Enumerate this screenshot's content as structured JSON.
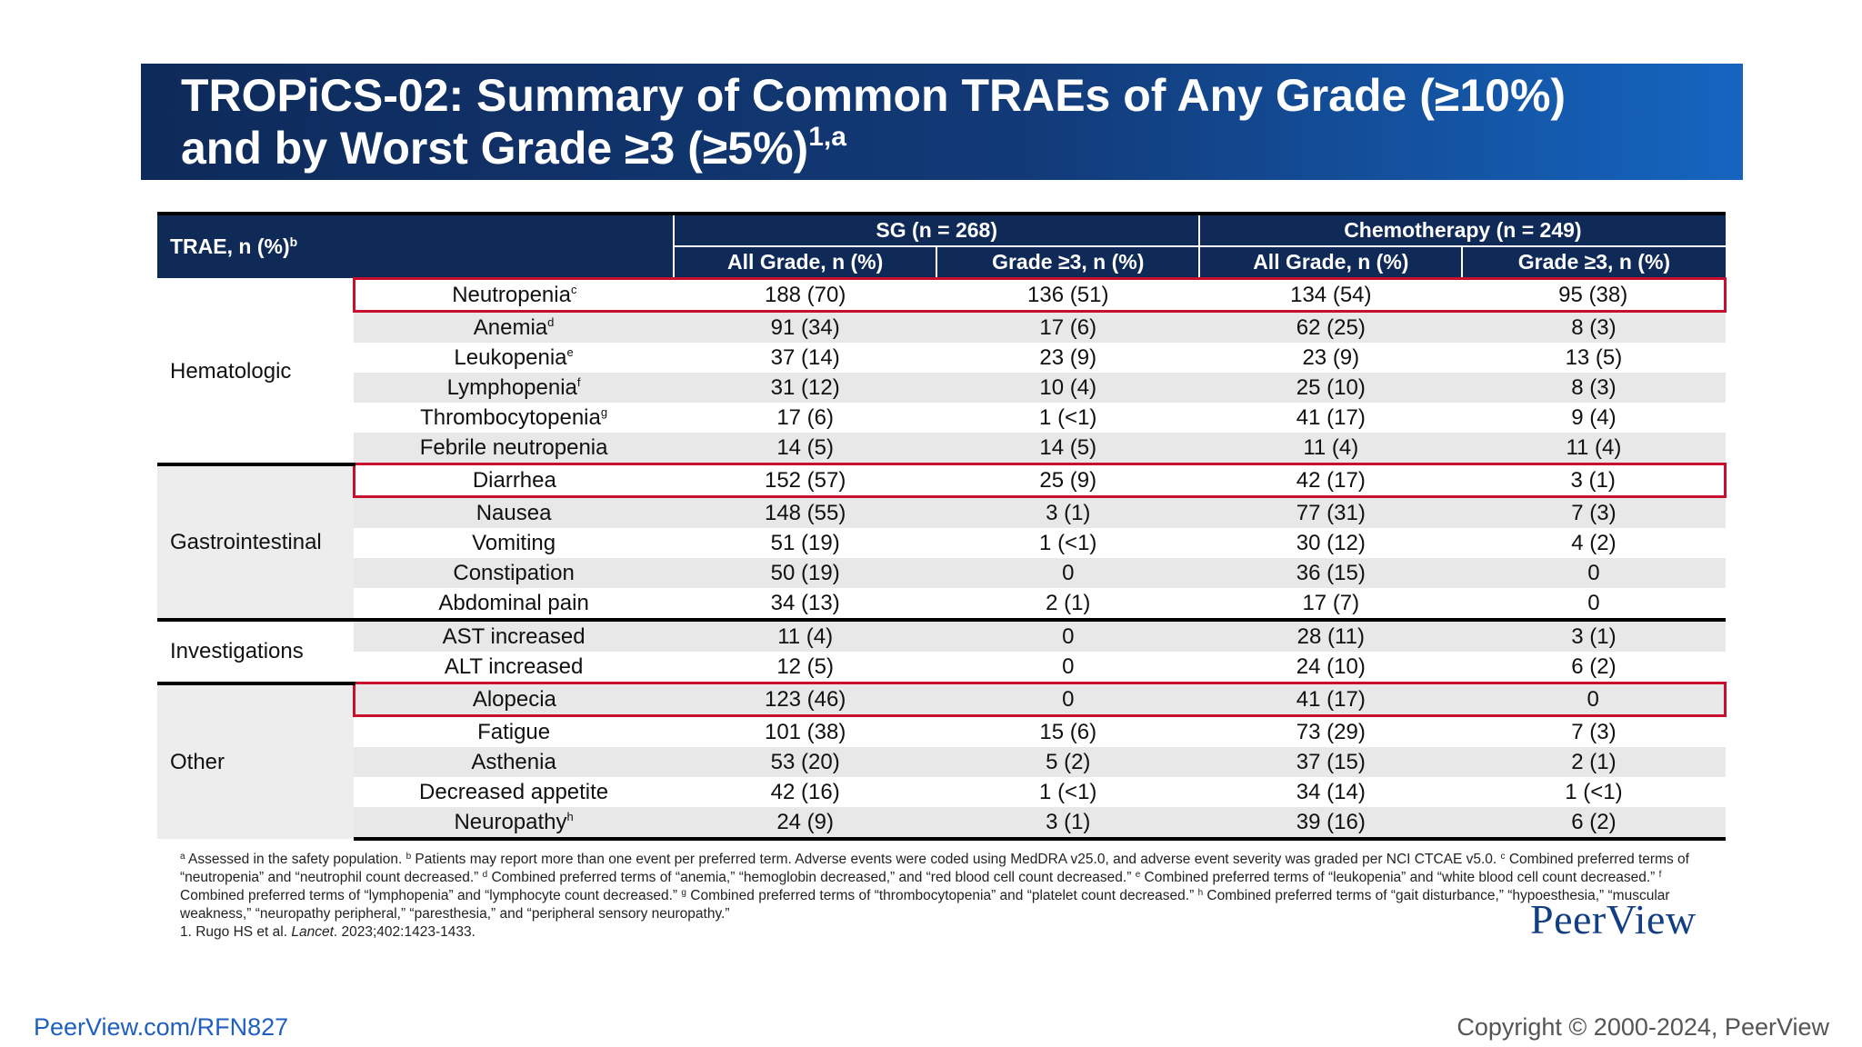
{
  "title": {
    "line1": "TROPiCS-02: Summary of Common TRAEs of Any Grade (≥10%)",
    "line2": "and by Worst Grade ≥3 (≥5%)",
    "line2_sup": "1,a"
  },
  "table": {
    "corner_label": "TRAE, n (%)",
    "corner_sup": "b",
    "group_headers": [
      "SG (n = 268)",
      "Chemotherapy (n = 249)"
    ],
    "sub_headers": [
      "All Grade, n (%)",
      "Grade ≥3, n (%)",
      "All Grade, n (%)",
      "Grade ≥3, n (%)"
    ],
    "categories": {
      "hematologic": "Hematologic",
      "gastrointestinal": "Gastrointestinal",
      "investigations": "Investigations",
      "other": "Other"
    },
    "rows": [
      {
        "term": "Neutropenia",
        "sup": "c",
        "values": [
          "188 (70)",
          "136 (51)",
          "134 (54)",
          "95 (38)"
        ]
      },
      {
        "term": "Anemia",
        "sup": "d",
        "values": [
          "91 (34)",
          "17 (6)",
          "62 (25)",
          "8 (3)"
        ]
      },
      {
        "term": "Leukopenia",
        "sup": "e",
        "values": [
          "37 (14)",
          "23 (9)",
          "23 (9)",
          "13 (5)"
        ]
      },
      {
        "term": "Lymphopenia",
        "sup": "f",
        "values": [
          "31 (12)",
          "10 (4)",
          "25 (10)",
          "8 (3)"
        ]
      },
      {
        "term": "Thrombocytopenia",
        "sup": "g",
        "values": [
          "17 (6)",
          "1 (<1)",
          "41 (17)",
          "9 (4)"
        ]
      },
      {
        "term": "Febrile neutropenia",
        "sup": "",
        "values": [
          "14 (5)",
          "14 (5)",
          "11 (4)",
          "11 (4)"
        ]
      },
      {
        "term": "Diarrhea",
        "sup": "",
        "values": [
          "152 (57)",
          "25 (9)",
          "42 (17)",
          "3 (1)"
        ]
      },
      {
        "term": "Nausea",
        "sup": "",
        "values": [
          "148 (55)",
          "3 (1)",
          "77 (31)",
          "7 (3)"
        ]
      },
      {
        "term": "Vomiting",
        "sup": "",
        "values": [
          "51 (19)",
          "1 (<1)",
          "30 (12)",
          "4 (2)"
        ]
      },
      {
        "term": "Constipation",
        "sup": "",
        "values": [
          "50 (19)",
          "0",
          "36 (15)",
          "0"
        ]
      },
      {
        "term": "Abdominal pain",
        "sup": "",
        "values": [
          "34 (13)",
          "2 (1)",
          "17 (7)",
          "0"
        ]
      },
      {
        "term": "AST increased",
        "sup": "",
        "values": [
          "11 (4)",
          "0",
          "28 (11)",
          "3 (1)"
        ]
      },
      {
        "term": "ALT increased",
        "sup": "",
        "values": [
          "12 (5)",
          "0",
          "24 (10)",
          "6 (2)"
        ]
      },
      {
        "term": "Alopecia",
        "sup": "",
        "values": [
          "123 (46)",
          "0",
          "41 (17)",
          "0"
        ]
      },
      {
        "term": "Fatigue",
        "sup": "",
        "values": [
          "101 (38)",
          "15 (6)",
          "73 (29)",
          "7 (3)"
        ]
      },
      {
        "term": "Asthenia",
        "sup": "",
        "values": [
          "53 (20)",
          "5 (2)",
          "37 (15)",
          "2 (1)"
        ]
      },
      {
        "term": "Decreased appetite",
        "sup": "",
        "values": [
          "42 (16)",
          "1 (<1)",
          "34 (14)",
          "1 (<1)"
        ]
      },
      {
        "term": "Neuropathy",
        "sup": "h",
        "values": [
          "24 (9)",
          "3 (1)",
          "39 (16)",
          "6 (2)"
        ]
      }
    ]
  },
  "footnotes": {
    "a_mark": "a",
    "a_text": " Assessed in the safety population. ",
    "b_mark": "b",
    "b_text": " Patients may report more than one event per preferred term. Adverse events were coded using MedDRA v25.0, and adverse event severity was graded per NCI CTCAE v5.0. ",
    "c_mark": "c",
    "c_text": " Combined preferred terms of “neutropenia” and “neutrophil count decreased.” ",
    "d_mark": "d",
    "d_text": " Combined preferred terms of “anemia,” “hemoglobin decreased,” and “red blood cell count decreased.” ",
    "e_mark": "e",
    "e_text": " Combined preferred terms of “leukopenia” and “white blood cell count decreased.” ",
    "f_mark": "f",
    "f_text": " Combined preferred terms of “lymphopenia” and “lymphocyte count decreased.” ",
    "g_mark": "g",
    "g_text": " Combined preferred terms of “thrombocytopenia” and “platelet count decreased.” ",
    "h_mark": "h",
    "h_text": " Combined preferred terms of “gait disturbance,” “hypoesthesia,” “muscular weakness,” “neuropathy peripheral,” “paresthesia,” and “peripheral sensory neuropathy.”",
    "ref_prefix": "1. Rugo HS et al. ",
    "ref_journal": "Lancet",
    "ref_suffix": ". 2023;402:1423-1433."
  },
  "logo": "PeerView",
  "footer": {
    "url": "PeerView.com/RFN827",
    "copyright": "Copyright © 2000-2024, PeerView"
  }
}
